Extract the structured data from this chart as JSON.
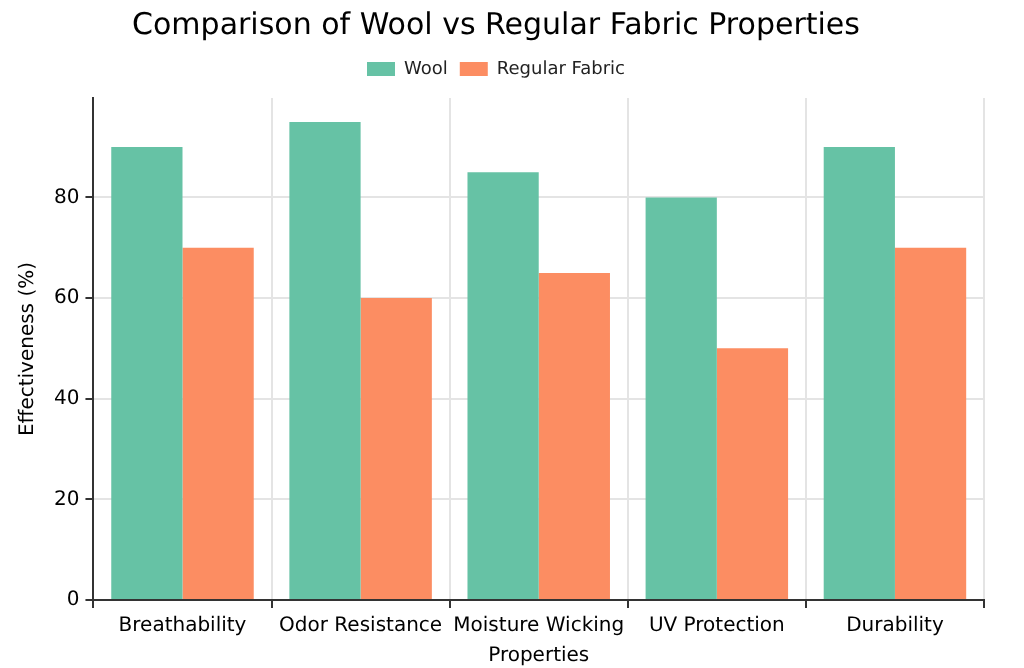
{
  "chart_data": {
    "type": "bar",
    "title": "Comparison of Wool vs Regular Fabric Properties",
    "xlabel": "Properties",
    "ylabel": "Effectiveness (%)",
    "categories": [
      "Breathability",
      "Odor Resistance",
      "Moisture Wicking",
      "UV Protection",
      "Durability"
    ],
    "series": [
      {
        "name": "Wool",
        "color": "#66c2a5",
        "values": [
          90,
          95,
          85,
          80,
          90
        ]
      },
      {
        "name": "Regular Fabric",
        "color": "#fc8d62",
        "values": [
          70,
          60,
          65,
          50,
          70
        ]
      }
    ],
    "ylim": [
      0,
      99.75
    ],
    "yticks": [
      0,
      20,
      40,
      60,
      80
    ],
    "grid": true,
    "legend": "top"
  }
}
